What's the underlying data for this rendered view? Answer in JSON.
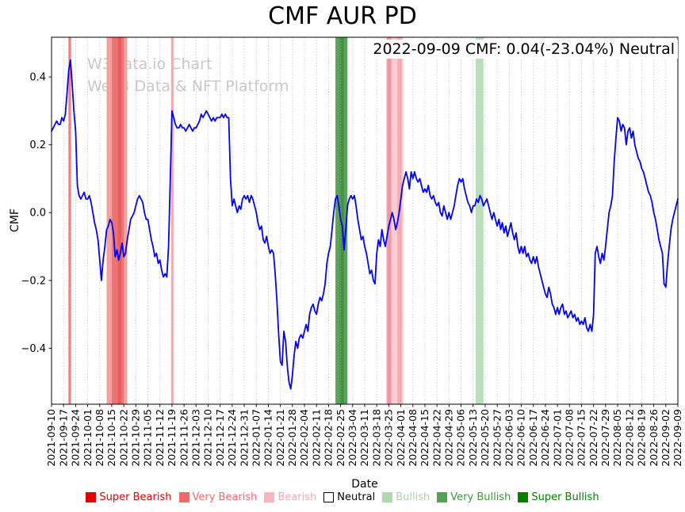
{
  "title": "CMF AUR PD",
  "watermark": {
    "line1": "W3Data.io Chart",
    "line2": "Web3 Data & NFT Platform"
  },
  "annotation": {
    "text": "2022-09-09 CMF: 0.04(-23.04%) Neutral"
  },
  "chart_data": {
    "type": "line",
    "title": "CMF AUR PD",
    "xlabel": "Date",
    "ylabel": "CMF",
    "ylim": [
      -0.565,
      0.517
    ],
    "yticks": [
      0.4,
      0.2,
      0.0,
      -0.2,
      -0.4
    ],
    "grid": true,
    "line_color": "#0202ee",
    "x_start_date": "2021-09-10",
    "x_end_date": "2022-09-09",
    "x_frequency": "daily",
    "x_tick_labels": [
      "2021-09-10",
      "2021-09-17",
      "2021-09-24",
      "2021-10-01",
      "2021-10-08",
      "2021-10-15",
      "2021-10-22",
      "2021-10-29",
      "2021-11-05",
      "2021-11-12",
      "2021-11-19",
      "2021-11-26",
      "2021-12-03",
      "2021-12-10",
      "2021-12-17",
      "2021-12-24",
      "2021-12-31",
      "2022-01-07",
      "2022-01-14",
      "2022-01-21",
      "2022-01-28",
      "2022-02-04",
      "2022-02-11",
      "2022-02-18",
      "2022-02-25",
      "2022-03-04",
      "2022-03-11",
      "2022-03-18",
      "2022-03-25",
      "2022-04-01",
      "2022-04-08",
      "2022-04-15",
      "2022-04-22",
      "2022-04-29",
      "2022-05-06",
      "2022-05-13",
      "2022-05-20",
      "2022-05-27",
      "2022-06-03",
      "2022-06-10",
      "2022-06-17",
      "2022-06-24",
      "2022-07-01",
      "2022-07-08",
      "2022-07-15",
      "2022-07-22",
      "2022-07-29",
      "2022-08-05",
      "2022-08-12",
      "2022-08-19",
      "2022-08-26",
      "2022-09-02",
      "2022-09-09"
    ],
    "bands": [
      {
        "start_day": 9.8,
        "end_day": 11.3,
        "label": "Very Bearish",
        "color": "#f28080"
      },
      {
        "start_day": 32,
        "end_day": 44,
        "label": "Very Bearish",
        "color": "#f4a0a0"
      },
      {
        "start_day": 35,
        "end_day": 42,
        "label": "Very Bearish",
        "color": "#ee7373"
      },
      {
        "start_day": 38.5,
        "end_day": 40.5,
        "label": "Very Bearish",
        "color": "#e75f5f"
      },
      {
        "start_day": 69.5,
        "end_day": 71,
        "label": "Bearish",
        "color": "#f6aeb6"
      },
      {
        "start_day": 165,
        "end_day": 172,
        "label": "Very Bullish",
        "color": "#5ba45b"
      },
      {
        "start_day": 167.5,
        "end_day": 170,
        "label": "Very Bullish",
        "color": "#459145"
      },
      {
        "start_day": 194.5,
        "end_day": 204.5,
        "label": "Bearish",
        "color": "#f9ccd2"
      },
      {
        "start_day": 195,
        "end_day": 197.5,
        "label": "Bearish",
        "color": "#f097a2"
      },
      {
        "start_day": 201,
        "end_day": 203.5,
        "label": "Bearish",
        "color": "#f3abb4"
      },
      {
        "start_day": 246.5,
        "end_day": 251,
        "label": "Bullish",
        "color": "#b9deb9"
      }
    ],
    "series": [
      {
        "name": "CMF",
        "values": [
          0.24,
          0.25,
          0.26,
          0.27,
          0.26,
          0.26,
          0.28,
          0.27,
          0.29,
          0.35,
          0.42,
          0.45,
          0.38,
          0.3,
          0.24,
          0.08,
          0.05,
          0.04,
          0.05,
          0.06,
          0.04,
          0.04,
          0.05,
          0.03,
          0.0,
          -0.03,
          -0.05,
          -0.08,
          -0.14,
          -0.2,
          -0.14,
          -0.1,
          -0.05,
          -0.04,
          -0.02,
          -0.03,
          -0.06,
          -0.13,
          -0.11,
          -0.14,
          -0.12,
          -0.09,
          -0.13,
          -0.12,
          -0.08,
          -0.05,
          -0.02,
          -0.01,
          0.0,
          0.02,
          0.04,
          0.05,
          0.04,
          0.03,
          0.0,
          -0.02,
          -0.02,
          -0.05,
          -0.08,
          -0.1,
          -0.13,
          -0.12,
          -0.15,
          -0.14,
          -0.17,
          -0.19,
          -0.18,
          -0.19,
          -0.1,
          0.1,
          0.3,
          0.28,
          0.26,
          0.25,
          0.25,
          0.26,
          0.25,
          0.25,
          0.24,
          0.25,
          0.26,
          0.25,
          0.24,
          0.25,
          0.25,
          0.26,
          0.27,
          0.29,
          0.28,
          0.29,
          0.3,
          0.29,
          0.28,
          0.27,
          0.28,
          0.27,
          0.28,
          0.28,
          0.28,
          0.29,
          0.28,
          0.29,
          0.28,
          0.28,
          0.1,
          0.02,
          0.04,
          0.02,
          0.0,
          0.02,
          0.01,
          0.04,
          0.05,
          0.04,
          0.05,
          0.03,
          0.05,
          0.04,
          0.02,
          0.0,
          -0.03,
          -0.05,
          -0.04,
          -0.08,
          -0.09,
          -0.07,
          -0.1,
          -0.12,
          -0.11,
          -0.12,
          -0.18,
          -0.26,
          -0.36,
          -0.44,
          -0.45,
          -0.35,
          -0.38,
          -0.45,
          -0.5,
          -0.52,
          -0.48,
          -0.42,
          -0.38,
          -0.4,
          -0.37,
          -0.36,
          -0.37,
          -0.35,
          -0.33,
          -0.35,
          -0.3,
          -0.28,
          -0.27,
          -0.29,
          -0.3,
          -0.27,
          -0.25,
          -0.26,
          -0.24,
          -0.21,
          -0.15,
          -0.12,
          -0.1,
          -0.05,
          0.0,
          0.04,
          0.05,
          0.02,
          -0.02,
          -0.04,
          -0.11,
          -0.05,
          0.02,
          0.04,
          0.05,
          0.04,
          0.05,
          0.02,
          -0.02,
          -0.05,
          -0.08,
          -0.07,
          -0.1,
          -0.12,
          -0.15,
          -0.18,
          -0.17,
          -0.2,
          -0.21,
          -0.12,
          -0.08,
          -0.1,
          -0.05,
          -0.08,
          -0.1,
          -0.07,
          -0.04,
          -0.02,
          0.0,
          -0.02,
          -0.05,
          -0.03,
          0.0,
          0.04,
          0.08,
          0.1,
          0.12,
          0.1,
          0.07,
          0.12,
          0.1,
          0.12,
          0.1,
          0.09,
          0.1,
          0.08,
          0.06,
          0.07,
          0.06,
          0.08,
          0.05,
          0.04,
          0.05,
          0.03,
          0.02,
          0.03,
          0.0,
          -0.01,
          0.02,
          0.0,
          -0.02,
          0.0,
          -0.02,
          0.0,
          0.02,
          0.05,
          0.08,
          0.1,
          0.09,
          0.1,
          0.07,
          0.05,
          0.03,
          0.02,
          0.0,
          0.02,
          0.02,
          0.04,
          0.03,
          0.05,
          0.04,
          0.02,
          0.03,
          0.04,
          0.02,
          0.0,
          -0.02,
          0.0,
          -0.02,
          -0.04,
          -0.02,
          -0.05,
          -0.03,
          -0.06,
          -0.04,
          -0.07,
          -0.05,
          -0.03,
          -0.06,
          -0.08,
          -0.06,
          -0.1,
          -0.12,
          -0.1,
          -0.12,
          -0.1,
          -0.13,
          -0.12,
          -0.14,
          -0.15,
          -0.13,
          -0.15,
          -0.13,
          -0.16,
          -0.18,
          -0.2,
          -0.22,
          -0.24,
          -0.25,
          -0.22,
          -0.24,
          -0.27,
          -0.28,
          -0.3,
          -0.28,
          -0.3,
          -0.28,
          -0.27,
          -0.3,
          -0.29,
          -0.31,
          -0.3,
          -0.29,
          -0.31,
          -0.3,
          -0.32,
          -0.31,
          -0.33,
          -0.32,
          -0.33,
          -0.31,
          -0.34,
          -0.35,
          -0.33,
          -0.35,
          -0.3,
          -0.12,
          -0.1,
          -0.13,
          -0.15,
          -0.12,
          -0.14,
          -0.1,
          -0.05,
          0.0,
          0.02,
          0.05,
          0.15,
          0.22,
          0.28,
          0.27,
          0.24,
          0.26,
          0.25,
          0.2,
          0.24,
          0.25,
          0.22,
          0.24,
          0.2,
          0.18,
          0.16,
          0.15,
          0.13,
          0.12,
          0.1,
          0.08,
          0.06,
          0.05,
          0.03,
          0.0,
          -0.02,
          -0.05,
          -0.08,
          -0.1,
          -0.12,
          -0.21,
          -0.22,
          -0.15,
          -0.1,
          -0.05,
          -0.02,
          0.0,
          0.02,
          0.04
        ]
      }
    ],
    "legend_position": "bottom"
  },
  "legend": {
    "items": [
      {
        "label": "Super Bearish",
        "color": "#e50000",
        "text_color": "#e50000"
      },
      {
        "label": "Very Bearish",
        "color": "#ee6a6a",
        "text_color": "#ee6a6a"
      },
      {
        "label": "Bearish",
        "color": "#f6b6c0",
        "text_color": "#f4aab5"
      },
      {
        "label": "Neutral",
        "color": "#ffffff",
        "text_color": "#000000"
      },
      {
        "label": "Bullish",
        "color": "#b2d8b2",
        "text_color": "#a9d2a9"
      },
      {
        "label": "Very Bullish",
        "color": "#55a055",
        "text_color": "#3f953f"
      },
      {
        "label": "Super Bullish",
        "color": "#008000",
        "text_color": "#008000"
      }
    ]
  }
}
